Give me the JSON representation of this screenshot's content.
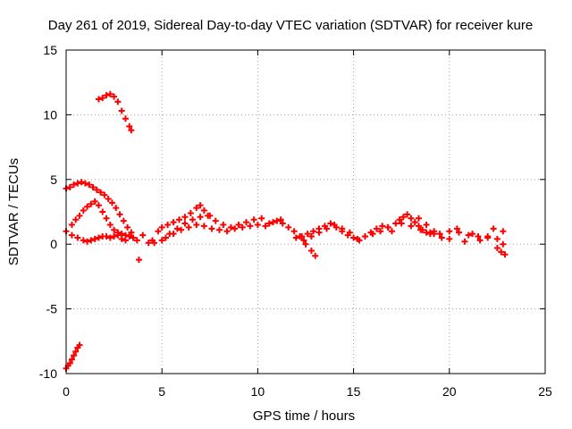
{
  "chart_data": {
    "type": "scatter",
    "title": "Day 261 of 2019, Sidereal Day-to-day VTEC variation (SDTVAR) for receiver kure",
    "xlabel": "GPS time / hours",
    "ylabel": "SDTVAR / TECUs",
    "xlim": [
      0,
      25
    ],
    "ylim": [
      -10,
      15
    ],
    "x_ticks": [
      0,
      5,
      10,
      15,
      20,
      25
    ],
    "y_ticks": [
      -10,
      -5,
      0,
      5,
      10,
      15
    ],
    "grid": true,
    "marker": "+",
    "series": [
      {
        "name": "receiver kure",
        "color": "#ff0000",
        "x": [
          0.0,
          0.1,
          0.2,
          0.3,
          0.4,
          0.5,
          0.6,
          0.7,
          0.0,
          0.2,
          0.4,
          0.6,
          0.8,
          1.0,
          1.2,
          1.4,
          1.6,
          1.8,
          2.0,
          2.2,
          2.4,
          2.6,
          2.8,
          3.0,
          3.2,
          3.4,
          0.3,
          0.5,
          0.7,
          0.9,
          1.1,
          1.3,
          1.5,
          1.7,
          1.9,
          2.1,
          2.3,
          2.5,
          2.7,
          2.9,
          3.1,
          3.3,
          0.0,
          0.3,
          0.6,
          0.9,
          1.1,
          1.3,
          1.5,
          1.7,
          1.9,
          2.1,
          2.3,
          2.5,
          2.7,
          2.9,
          3.1,
          1.7,
          1.9,
          2.1,
          2.3,
          2.5,
          2.7,
          2.9,
          3.1,
          3.3,
          3.4,
          3.5,
          3.7,
          3.8,
          4.0,
          4.3,
          4.5,
          4.8,
          5.0,
          5.3,
          5.6,
          5.9,
          6.2,
          6.5,
          6.8,
          7.0,
          7.2,
          7.5,
          4.6,
          5.0,
          5.4,
          5.8,
          6.2,
          6.6,
          7.0,
          7.4,
          7.8,
          8.2,
          8.6,
          9.0,
          9.4,
          9.8,
          10.2,
          10.6,
          5.2,
          5.6,
          6.0,
          6.4,
          6.8,
          7.2,
          7.6,
          8.0,
          8.4,
          8.8,
          9.2,
          9.6,
          10.0,
          10.4,
          10.8,
          11.2,
          11.0,
          11.3,
          11.6,
          11.9,
          12.2,
          12.5,
          12.8,
          13.0,
          12.0,
          12.4,
          12.8,
          13.2,
          13.6,
          14.0,
          14.4,
          14.8,
          12.3,
          12.6,
          12.9,
          13.2,
          13.5,
          13.8,
          14.1,
          14.4,
          14.7,
          15.0,
          15.3,
          15.6,
          15.9,
          16.2,
          16.5,
          16.8,
          15.2,
          15.6,
          16.0,
          16.4,
          16.8,
          17.2,
          17.4,
          17.6,
          17.8,
          18.0,
          18.2,
          18.4,
          18.6,
          18.8,
          19.0,
          19.2,
          17.0,
          17.5,
          18.0,
          18.5,
          19.0,
          19.5,
          20.0,
          20.5,
          21.0,
          21.5,
          22.0,
          22.5,
          22.8,
          18.4,
          18.8,
          19.2,
          19.6,
          20.0,
          20.4,
          20.8,
          21.2,
          21.6,
          22.0,
          22.3,
          22.5,
          22.7,
          22.8,
          22.9
        ],
        "y": [
          -9.6,
          -9.4,
          -9.2,
          -8.9,
          -8.6,
          -8.3,
          -8.0,
          -7.8,
          4.3,
          4.4,
          4.6,
          4.7,
          4.8,
          4.7,
          4.6,
          4.4,
          4.2,
          4.0,
          3.8,
          3.5,
          3.2,
          2.8,
          2.3,
          1.8,
          1.3,
          0.9,
          1.5,
          1.9,
          2.2,
          2.6,
          2.9,
          3.1,
          3.3,
          3.0,
          2.5,
          2.0,
          1.5,
          1.1,
          0.9,
          0.8,
          0.7,
          0.6,
          1.0,
          0.7,
          0.5,
          0.3,
          0.2,
          0.3,
          0.4,
          0.5,
          0.6,
          0.6,
          0.5,
          0.6,
          0.7,
          0.4,
          0.3,
          11.2,
          11.3,
          11.5,
          11.6,
          11.4,
          11.0,
          10.3,
          9.7,
          9.1,
          8.8,
          0.5,
          0.3,
          -1.2,
          0.7,
          0.1,
          0.3,
          1.0,
          1.3,
          1.5,
          1.7,
          1.9,
          2.1,
          2.4,
          2.8,
          3.0,
          2.6,
          2.2,
          0.1,
          0.3,
          0.8,
          1.2,
          1.6,
          1.9,
          2.1,
          2.2,
          1.8,
          1.5,
          1.3,
          1.5,
          1.7,
          1.9,
          2.0,
          1.6,
          0.5,
          0.8,
          1.1,
          1.3,
          1.5,
          1.4,
          1.2,
          1.1,
          1.0,
          1.2,
          1.3,
          1.4,
          1.5,
          1.4,
          1.7,
          1.9,
          1.8,
          1.6,
          1.3,
          1.0,
          0.6,
          0.0,
          -0.5,
          -0.9,
          0.5,
          0.3,
          0.6,
          0.9,
          1.2,
          1.5,
          1.2,
          0.9,
          0.6,
          0.8,
          1.0,
          1.2,
          1.4,
          1.6,
          1.3,
          1.0,
          0.7,
          0.5,
          0.3,
          0.6,
          0.9,
          1.2,
          1.4,
          1.3,
          0.4,
          0.6,
          0.8,
          1.0,
          1.3,
          1.6,
          1.9,
          2.1,
          2.3,
          2.0,
          1.7,
          1.4,
          1.1,
          0.9,
          0.8,
          1.0,
          1.0,
          1.6,
          1.4,
          1.1,
          0.9,
          0.8,
          1.0,
          0.9,
          0.7,
          0.6,
          0.5,
          0.4,
          1.0,
          2.0,
          1.5,
          0.8,
          0.5,
          0.4,
          1.2,
          0.2,
          0.8,
          0.3,
          0.6,
          1.2,
          -0.3,
          -0.6,
          0.0,
          -0.8
        ]
      }
    ]
  }
}
